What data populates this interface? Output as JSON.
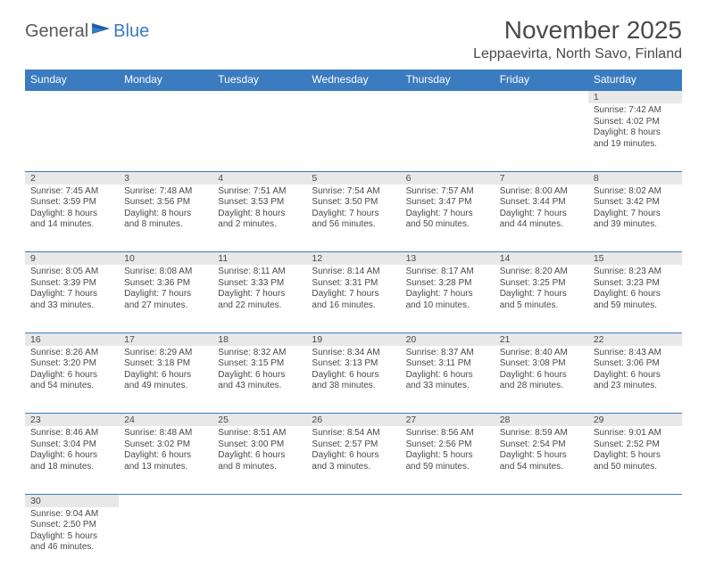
{
  "logo": {
    "text1": "General",
    "text2": "Blue"
  },
  "title": "November 2025",
  "location": "Leppaevirta, North Savo, Finland",
  "colors": {
    "header_bg": "#3b7bbf",
    "header_fg": "#ffffff",
    "daynum_bg": "#e8e8e8",
    "text": "#4a4a4a",
    "rule": "#3b7bbf"
  },
  "weekdays": [
    "Sunday",
    "Monday",
    "Tuesday",
    "Wednesday",
    "Thursday",
    "Friday",
    "Saturday"
  ],
  "weeks": [
    [
      null,
      null,
      null,
      null,
      null,
      null,
      {
        "n": "1",
        "sr": "7:42 AM",
        "ss": "4:02 PM",
        "dl": "8 hours and 19 minutes."
      }
    ],
    [
      {
        "n": "2",
        "sr": "7:45 AM",
        "ss": "3:59 PM",
        "dl": "8 hours and 14 minutes."
      },
      {
        "n": "3",
        "sr": "7:48 AM",
        "ss": "3:56 PM",
        "dl": "8 hours and 8 minutes."
      },
      {
        "n": "4",
        "sr": "7:51 AM",
        "ss": "3:53 PM",
        "dl": "8 hours and 2 minutes."
      },
      {
        "n": "5",
        "sr": "7:54 AM",
        "ss": "3:50 PM",
        "dl": "7 hours and 56 minutes."
      },
      {
        "n": "6",
        "sr": "7:57 AM",
        "ss": "3:47 PM",
        "dl": "7 hours and 50 minutes."
      },
      {
        "n": "7",
        "sr": "8:00 AM",
        "ss": "3:44 PM",
        "dl": "7 hours and 44 minutes."
      },
      {
        "n": "8",
        "sr": "8:02 AM",
        "ss": "3:42 PM",
        "dl": "7 hours and 39 minutes."
      }
    ],
    [
      {
        "n": "9",
        "sr": "8:05 AM",
        "ss": "3:39 PM",
        "dl": "7 hours and 33 minutes."
      },
      {
        "n": "10",
        "sr": "8:08 AM",
        "ss": "3:36 PM",
        "dl": "7 hours and 27 minutes."
      },
      {
        "n": "11",
        "sr": "8:11 AM",
        "ss": "3:33 PM",
        "dl": "7 hours and 22 minutes."
      },
      {
        "n": "12",
        "sr": "8:14 AM",
        "ss": "3:31 PM",
        "dl": "7 hours and 16 minutes."
      },
      {
        "n": "13",
        "sr": "8:17 AM",
        "ss": "3:28 PM",
        "dl": "7 hours and 10 minutes."
      },
      {
        "n": "14",
        "sr": "8:20 AM",
        "ss": "3:25 PM",
        "dl": "7 hours and 5 minutes."
      },
      {
        "n": "15",
        "sr": "8:23 AM",
        "ss": "3:23 PM",
        "dl": "6 hours and 59 minutes."
      }
    ],
    [
      {
        "n": "16",
        "sr": "8:26 AM",
        "ss": "3:20 PM",
        "dl": "6 hours and 54 minutes."
      },
      {
        "n": "17",
        "sr": "8:29 AM",
        "ss": "3:18 PM",
        "dl": "6 hours and 49 minutes."
      },
      {
        "n": "18",
        "sr": "8:32 AM",
        "ss": "3:15 PM",
        "dl": "6 hours and 43 minutes."
      },
      {
        "n": "19",
        "sr": "8:34 AM",
        "ss": "3:13 PM",
        "dl": "6 hours and 38 minutes."
      },
      {
        "n": "20",
        "sr": "8:37 AM",
        "ss": "3:11 PM",
        "dl": "6 hours and 33 minutes."
      },
      {
        "n": "21",
        "sr": "8:40 AM",
        "ss": "3:08 PM",
        "dl": "6 hours and 28 minutes."
      },
      {
        "n": "22",
        "sr": "8:43 AM",
        "ss": "3:06 PM",
        "dl": "6 hours and 23 minutes."
      }
    ],
    [
      {
        "n": "23",
        "sr": "8:46 AM",
        "ss": "3:04 PM",
        "dl": "6 hours and 18 minutes."
      },
      {
        "n": "24",
        "sr": "8:48 AM",
        "ss": "3:02 PM",
        "dl": "6 hours and 13 minutes."
      },
      {
        "n": "25",
        "sr": "8:51 AM",
        "ss": "3:00 PM",
        "dl": "6 hours and 8 minutes."
      },
      {
        "n": "26",
        "sr": "8:54 AM",
        "ss": "2:57 PM",
        "dl": "6 hours and 3 minutes."
      },
      {
        "n": "27",
        "sr": "8:56 AM",
        "ss": "2:56 PM",
        "dl": "5 hours and 59 minutes."
      },
      {
        "n": "28",
        "sr": "8:59 AM",
        "ss": "2:54 PM",
        "dl": "5 hours and 54 minutes."
      },
      {
        "n": "29",
        "sr": "9:01 AM",
        "ss": "2:52 PM",
        "dl": "5 hours and 50 minutes."
      }
    ],
    [
      {
        "n": "30",
        "sr": "9:04 AM",
        "ss": "2:50 PM",
        "dl": "5 hours and 46 minutes."
      },
      null,
      null,
      null,
      null,
      null,
      null
    ]
  ],
  "labels": {
    "sunrise": "Sunrise:",
    "sunset": "Sunset:",
    "daylight": "Daylight:"
  }
}
